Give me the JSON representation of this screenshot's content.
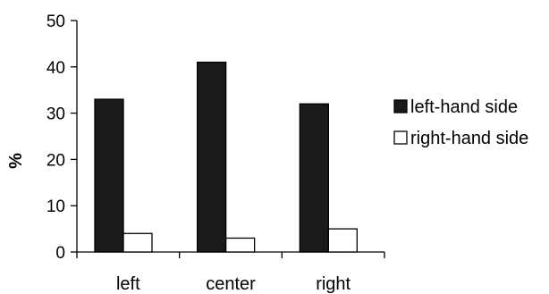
{
  "chart_data": {
    "type": "bar",
    "categories": [
      "left",
      "center",
      "right"
    ],
    "series": [
      {
        "name": "left-hand side",
        "values": [
          33,
          41,
          32
        ],
        "color": "#1a1a1a"
      },
      {
        "name": "right-hand side",
        "values": [
          4,
          3,
          5
        ],
        "color": "#ffffff"
      }
    ],
    "yticks": [
      "0",
      "10",
      "20",
      "30",
      "40",
      "50"
    ],
    "ylabel": "%",
    "xlabel": "",
    "ylim": [
      0,
      50
    ],
    "grid": false,
    "legend_position": "right"
  }
}
